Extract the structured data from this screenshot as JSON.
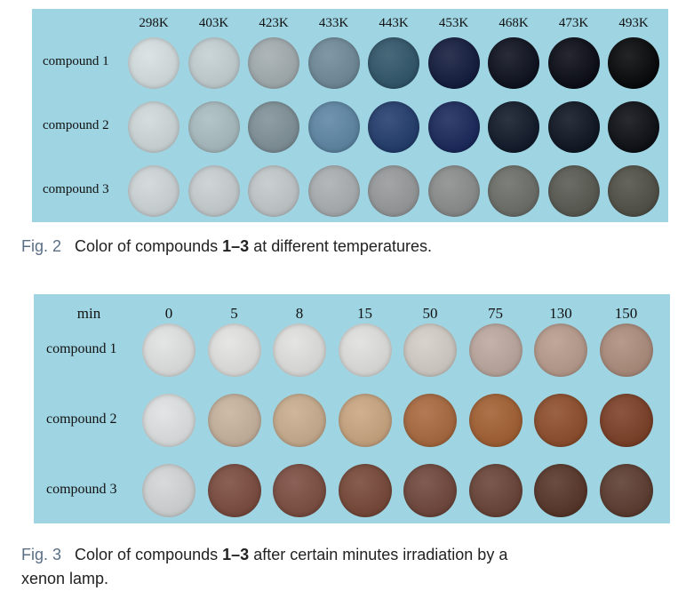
{
  "fig2": {
    "columns": [
      "298K",
      "403K",
      "423K",
      "433K",
      "443K",
      "453K",
      "468K",
      "473K",
      "493K"
    ],
    "rows": [
      "compound 1",
      "compound 2",
      "compound 3"
    ],
    "colors": [
      [
        "#d6dfe1",
        "#c4d0d3",
        "#a2acaf",
        "#6f8a99",
        "#2e5468",
        "#111a3c",
        "#0b0f1c",
        "#080a14",
        "#050608"
      ],
      [
        "#cfd8da",
        "#a9bcc0",
        "#7e9097",
        "#5d86a4",
        "#213b6c",
        "#18275a",
        "#0f1828",
        "#0c1420",
        "#0a0d12"
      ],
      [
        "#cfd6d8",
        "#c8cfd1",
        "#c2c8ca",
        "#a9aeb0",
        "#96999a",
        "#8a8c8c",
        "#6b6d67",
        "#575850",
        "#4f4f46"
      ]
    ],
    "caption": {
      "fig": "Fig. 2",
      "pre": "Color of compounds ",
      "bold": "1–3",
      "post": " at different temperatures."
    }
  },
  "fig3": {
    "corner": "min",
    "columns": [
      "0",
      "5",
      "8",
      "15",
      "50",
      "75",
      "130",
      "150"
    ],
    "rows": [
      "compound 1",
      "compound 2",
      "compound 3"
    ],
    "colors": [
      [
        "#e0e2e1",
        "#e2e3e1",
        "#e0e1df",
        "#dfe0de",
        "#d3cdc6",
        "#bca89f",
        "#b89b8c",
        "#ad8c7c"
      ],
      [
        "#dfe2e2",
        "#c7b29d",
        "#c9ad8e",
        "#c9a57f",
        "#a8683d",
        "#a25f31",
        "#8d4c2a",
        "#7b3e25"
      ],
      [
        "#d3d6d6",
        "#7a4a3e",
        "#7b4c40",
        "#764737",
        "#6e453a",
        "#684236",
        "#563427",
        "#5b3a2e"
      ]
    ],
    "caption": {
      "fig": "Fig. 3",
      "pre": "Color of compounds ",
      "bold": "1–3",
      "post": " after certain minutes irradiation by a",
      "line2": "xenon lamp."
    }
  }
}
